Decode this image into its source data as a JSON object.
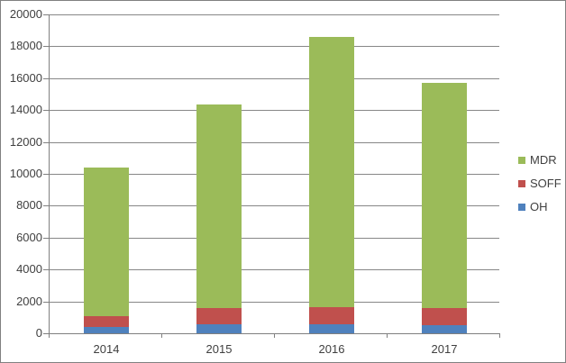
{
  "chart_data": {
    "type": "bar",
    "stacked": true,
    "title": "",
    "xlabel": "",
    "ylabel": "",
    "categories": [
      "2014",
      "2015",
      "2016",
      "2017"
    ],
    "series": [
      {
        "name": "OH",
        "color": "#4F81BD",
        "values": [
          400,
          550,
          580,
          530
        ]
      },
      {
        "name": "SOFF",
        "color": "#C0504D",
        "values": [
          650,
          1050,
          1060,
          1050
        ]
      },
      {
        "name": "MDR",
        "color": "#9BBB59",
        "values": [
          9350,
          12750,
          16930,
          14120
        ]
      }
    ],
    "totals": [
      10400,
      14350,
      18570,
      15700
    ],
    "ylim": [
      0,
      20000
    ],
    "y_tick_step": 2000,
    "y_tick_labels": [
      "0",
      "2000",
      "4000",
      "6000",
      "8000",
      "10000",
      "12000",
      "14000",
      "16000",
      "18000",
      "20000"
    ],
    "grid": true,
    "legend_position": "right",
    "legend_order_top_to_bottom": [
      "MDR",
      "SOFF",
      "OH"
    ]
  },
  "colors": {
    "axis": "#808080",
    "gridline": "#878787",
    "tick": "#808080",
    "text": "#404040",
    "canvas_border": "#808080",
    "background": "#FFFFFF"
  }
}
